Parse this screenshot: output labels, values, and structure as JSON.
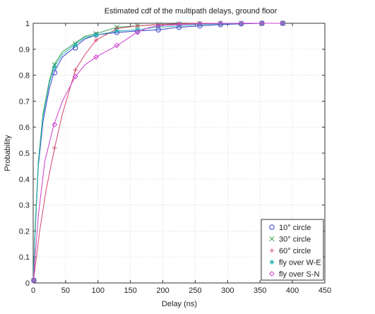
{
  "chart_data": {
    "type": "line",
    "title": "Estimated cdf of the multipath delays, ground floor",
    "xlabel": "Delay (ns)",
    "ylabel": "Probability",
    "xlim": [
      0,
      450
    ],
    "ylim": [
      0,
      1
    ],
    "x_ticks": [
      "0",
      "50",
      "100",
      "150",
      "200",
      "250",
      "300",
      "350",
      "400",
      "450"
    ],
    "y_ticks": [
      "0",
      "0.1",
      "0.2",
      "0.3",
      "0.4",
      "0.5",
      "0.6",
      "0.7",
      "0.8",
      "0.9",
      "1"
    ],
    "grid": true,
    "legend_position": "bottom-right",
    "series": [
      {
        "name": "10° circle",
        "color": "#3a3acc",
        "marker": "circle",
        "curve": [
          [
            0,
            0
          ],
          [
            3,
            0.2
          ],
          [
            8,
            0.45
          ],
          [
            15,
            0.62
          ],
          [
            25,
            0.75
          ],
          [
            32,
            0.81
          ],
          [
            45,
            0.87
          ],
          [
            65,
            0.91
          ],
          [
            80,
            0.94
          ],
          [
            97,
            0.955
          ],
          [
            130,
            0.965
          ],
          [
            160,
            0.97
          ],
          [
            193,
            0.975
          ],
          [
            225,
            0.985
          ],
          [
            257,
            0.99
          ],
          [
            290,
            0.995
          ],
          [
            322,
            0.998
          ],
          [
            354,
            1.0
          ],
          [
            386,
            1.0
          ]
        ],
        "markers": [
          [
            1,
            0.01
          ],
          [
            33,
            0.81
          ],
          [
            65,
            0.905
          ],
          [
            97,
            0.955
          ],
          [
            129,
            0.965
          ],
          [
            161,
            0.97
          ],
          [
            193,
            0.975
          ],
          [
            225,
            0.985
          ],
          [
            257,
            0.99
          ],
          [
            289,
            0.995
          ],
          [
            321,
            0.998
          ],
          [
            353,
            1.0
          ],
          [
            385,
            1.0
          ]
        ]
      },
      {
        "name": "30° circle",
        "color": "#2e9e4a",
        "marker": "x",
        "curve": [
          [
            0,
            0
          ],
          [
            3,
            0.22
          ],
          [
            8,
            0.47
          ],
          [
            15,
            0.65
          ],
          [
            25,
            0.78
          ],
          [
            32,
            0.84
          ],
          [
            45,
            0.89
          ],
          [
            65,
            0.925
          ],
          [
            80,
            0.95
          ],
          [
            97,
            0.96
          ],
          [
            130,
            0.985
          ],
          [
            160,
            0.99
          ],
          [
            193,
            0.995
          ],
          [
            225,
            0.997
          ],
          [
            257,
            0.999
          ],
          [
            290,
            1.0
          ],
          [
            322,
            1.0
          ],
          [
            354,
            1.0
          ],
          [
            386,
            1.0
          ]
        ],
        "markers": [
          [
            1,
            0.01
          ],
          [
            33,
            0.84
          ],
          [
            65,
            0.92
          ],
          [
            97,
            0.96
          ],
          [
            129,
            0.985
          ],
          [
            161,
            0.99
          ],
          [
            193,
            0.995
          ],
          [
            225,
            0.997
          ],
          [
            257,
            0.999
          ],
          [
            289,
            1.0
          ],
          [
            321,
            1.0
          ],
          [
            353,
            1.0
          ],
          [
            385,
            1.0
          ]
        ]
      },
      {
        "name": "60° circle",
        "color": "#d2476a",
        "marker": "plus",
        "curve": [
          [
            0,
            0
          ],
          [
            4,
            0.08
          ],
          [
            10,
            0.2
          ],
          [
            20,
            0.36
          ],
          [
            33,
            0.52
          ],
          [
            45,
            0.65
          ],
          [
            65,
            0.82
          ],
          [
            80,
            0.88
          ],
          [
            97,
            0.935
          ],
          [
            130,
            0.98
          ],
          [
            160,
            0.99
          ],
          [
            193,
            0.995
          ],
          [
            225,
            0.998
          ],
          [
            257,
            1.0
          ],
          [
            290,
            1.0
          ],
          [
            322,
            1.0
          ],
          [
            354,
            1.0
          ],
          [
            386,
            1.0
          ]
        ],
        "markers": [
          [
            1,
            0.01
          ],
          [
            33,
            0.52
          ],
          [
            65,
            0.82
          ],
          [
            97,
            0.935
          ],
          [
            129,
            0.98
          ],
          [
            161,
            0.99
          ],
          [
            193,
            0.995
          ],
          [
            225,
            0.998
          ],
          [
            257,
            1.0
          ],
          [
            289,
            1.0
          ],
          [
            321,
            1.0
          ],
          [
            353,
            1.0
          ],
          [
            385,
            1.0
          ]
        ]
      },
      {
        "name": "fly over W-E",
        "color": "#2bb5b5",
        "marker": "star",
        "curve": [
          [
            0,
            0
          ],
          [
            3,
            0.2
          ],
          [
            8,
            0.46
          ],
          [
            15,
            0.64
          ],
          [
            25,
            0.77
          ],
          [
            32,
            0.83
          ],
          [
            45,
            0.88
          ],
          [
            65,
            0.92
          ],
          [
            80,
            0.945
          ],
          [
            97,
            0.955
          ],
          [
            130,
            0.97
          ],
          [
            160,
            0.975
          ],
          [
            193,
            0.985
          ],
          [
            225,
            0.99
          ],
          [
            257,
            0.995
          ],
          [
            290,
            0.998
          ],
          [
            322,
            1.0
          ],
          [
            354,
            1.0
          ],
          [
            386,
            1.0
          ]
        ],
        "markers": [
          [
            1,
            0.01
          ],
          [
            33,
            0.83
          ],
          [
            65,
            0.915
          ],
          [
            97,
            0.955
          ],
          [
            129,
            0.97
          ],
          [
            161,
            0.975
          ],
          [
            193,
            0.985
          ],
          [
            225,
            0.99
          ],
          [
            257,
            0.995
          ],
          [
            289,
            0.998
          ],
          [
            321,
            1.0
          ],
          [
            353,
            1.0
          ],
          [
            385,
            1.0
          ]
        ]
      },
      {
        "name": "fly over S-N",
        "color": "#cc3ccc",
        "marker": "diamond",
        "curve": [
          [
            0,
            0
          ],
          [
            3,
            0.1
          ],
          [
            8,
            0.26
          ],
          [
            18,
            0.47
          ],
          [
            32,
            0.61
          ],
          [
            45,
            0.7
          ],
          [
            65,
            0.795
          ],
          [
            80,
            0.84
          ],
          [
            97,
            0.87
          ],
          [
            115,
            0.895
          ],
          [
            130,
            0.915
          ],
          [
            145,
            0.94
          ],
          [
            160,
            0.965
          ],
          [
            180,
            0.985
          ],
          [
            193,
            0.99
          ],
          [
            225,
            0.995
          ],
          [
            257,
            0.998
          ],
          [
            290,
            1.0
          ],
          [
            322,
            1.0
          ],
          [
            354,
            1.0
          ],
          [
            386,
            1.0
          ]
        ],
        "markers": [
          [
            1,
            0.01
          ],
          [
            33,
            0.61
          ],
          [
            65,
            0.795
          ],
          [
            97,
            0.87
          ],
          [
            129,
            0.915
          ],
          [
            161,
            0.965
          ],
          [
            193,
            0.99
          ],
          [
            225,
            0.995
          ],
          [
            257,
            0.998
          ],
          [
            289,
            1.0
          ],
          [
            321,
            1.0
          ],
          [
            353,
            1.0
          ],
          [
            385,
            1.0
          ]
        ]
      }
    ]
  }
}
